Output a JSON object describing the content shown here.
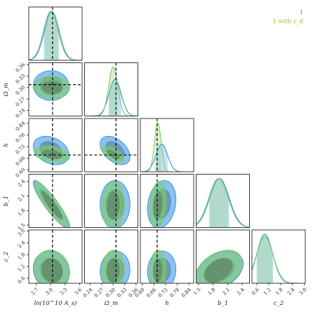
{
  "colors": {
    "blue": "#2f8fe0",
    "green": "#7fcc63",
    "dark": "#4d6b5a"
  },
  "legend": [
    {
      "label": "1",
      "color": "#2f8fe0"
    },
    {
      "label": "1 with r_d",
      "color": "#9ac045"
    }
  ],
  "chart_data": {
    "type": "corner",
    "params": [
      {
        "name": "lnAs",
        "label": "ln(10^10 A_s)",
        "range": [
          2.55,
          3.65
        ],
        "ticks": [
          "2.7",
          "3.0",
          "3.3",
          "3.6"
        ],
        "tickvals": [
          2.7,
          3.0,
          3.3,
          3.6
        ],
        "truth": 3.04
      },
      {
        "name": "Omega_m",
        "label": "Ω_m",
        "range": [
          0.225,
          0.365
        ],
        "ticks": [
          "0.24",
          "0.27",
          "0.30",
          "0.33",
          "0.36"
        ],
        "tickvals": [
          0.24,
          0.27,
          0.3,
          0.33,
          0.36
        ],
        "truth": 0.3075
      },
      {
        "name": "h",
        "label": "h",
        "range": [
          0.59,
          0.865
        ],
        "ticks": [
          "0.60",
          "0.66",
          "0.72",
          "0.78",
          "0.84"
        ],
        "tickvals": [
          0.6,
          0.66,
          0.72,
          0.78,
          0.84
        ],
        "truth": 0.6766
      },
      {
        "name": "b1",
        "label": "b_1",
        "range": [
          1.45,
          2.55
        ],
        "ticks": [
          "1.5",
          "1.8",
          "2.1",
          "2.4"
        ],
        "tickvals": [
          1.5,
          1.8,
          2.1,
          2.4
        ],
        "truth": null
      },
      {
        "name": "c2",
        "label": "c_2",
        "range": [
          0.35,
          3.05
        ],
        "ticks": [
          "0.6",
          "1.2",
          "1.8",
          "2.4",
          "3.0"
        ],
        "tickvals": [
          0.6,
          1.2,
          1.8,
          2.4,
          3.0
        ],
        "truth": null
      }
    ],
    "series": [
      {
        "name": "1",
        "color": "#2f8fe0",
        "mean": [
          3.01,
          0.305,
          0.7,
          1.93,
          1.0
        ],
        "sigma": [
          0.15,
          0.016,
          0.03,
          0.2,
          0.4
        ],
        "corr": [
          [
            1.0,
            0.0,
            -0.3,
            -0.9,
            -0.1
          ],
          [
            0.0,
            1.0,
            -0.45,
            0.0,
            0.05
          ],
          [
            -0.3,
            -0.45,
            1.0,
            0.2,
            0.05
          ],
          [
            -0.9,
            0.0,
            0.2,
            1.0,
            0.35
          ],
          [
            -0.1,
            0.05,
            0.05,
            0.35,
            1.0
          ]
        ]
      },
      {
        "name": "1 with r_d",
        "color": "#7fcc63",
        "mean": [
          3.03,
          0.3,
          0.68,
          1.91,
          1.0
        ],
        "sigma": [
          0.15,
          0.012,
          0.017,
          0.2,
          0.42
        ],
        "corr": [
          [
            1.0,
            -0.05,
            -0.3,
            -0.9,
            -0.1
          ],
          [
            -0.05,
            1.0,
            -0.65,
            0.05,
            0.05
          ],
          [
            -0.3,
            -0.65,
            1.0,
            0.2,
            0.05
          ],
          [
            -0.9,
            0.05,
            0.2,
            1.0,
            0.4
          ],
          [
            -0.1,
            0.05,
            0.05,
            0.4,
            1.0
          ]
        ]
      }
    ],
    "contour_levels": [
      "68%",
      "95%"
    ],
    "marginal_shading": "68%",
    "truth_line_style": "dashed black"
  }
}
